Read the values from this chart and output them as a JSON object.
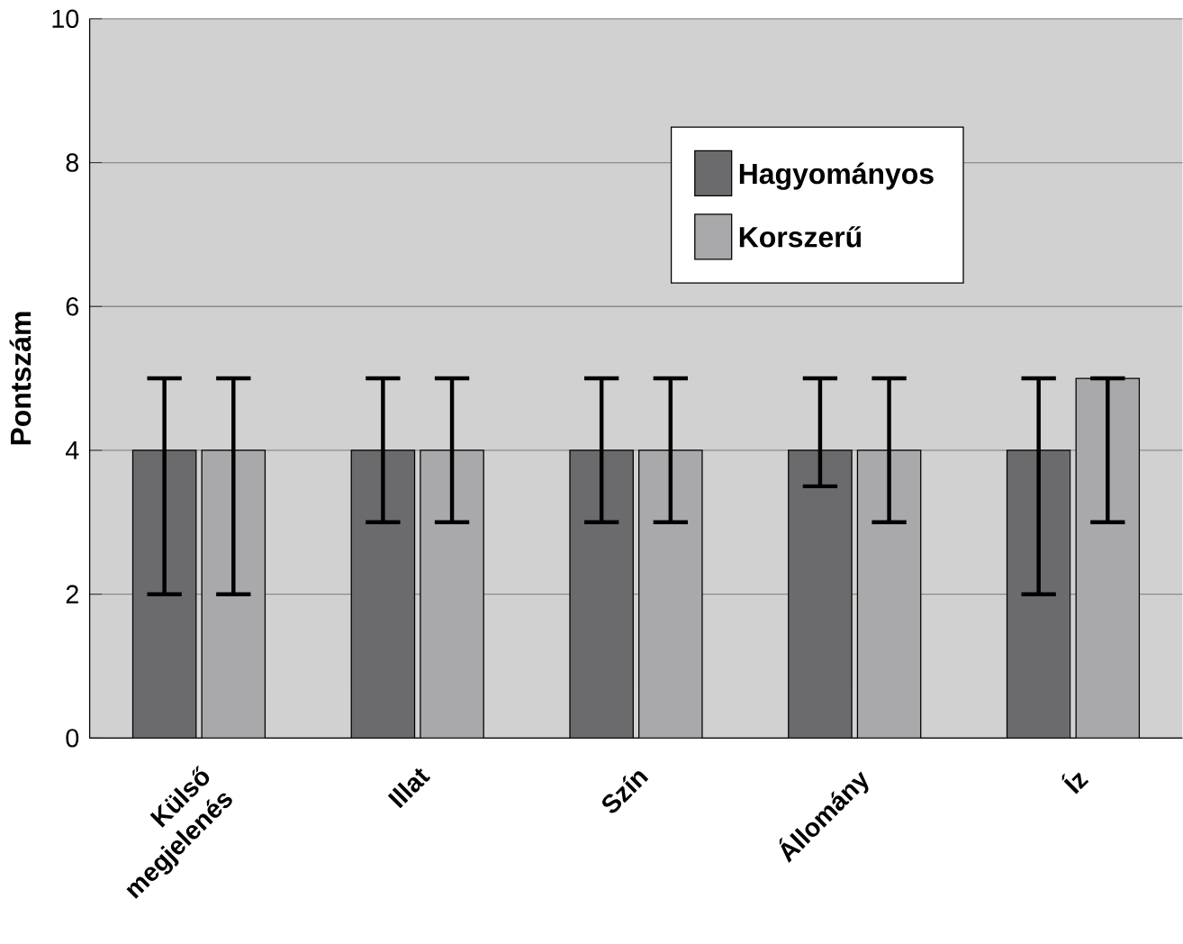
{
  "chart_data": {
    "type": "bar",
    "ylabel": "Pontszám",
    "categories": [
      "Külső megjelenés",
      "Illat",
      "Szín",
      "Állomány",
      "Íz"
    ],
    "series": [
      {
        "name": "Hagyományos",
        "color": "#6b6b6d",
        "values": [
          4,
          4,
          4,
          4,
          4
        ],
        "errors": [
          [
            2,
            5
          ],
          [
            3,
            5
          ],
          [
            3,
            5
          ],
          [
            3.5,
            5
          ],
          [
            2,
            5
          ]
        ]
      },
      {
        "name": "Korszerű",
        "color": "#a9a9ab",
        "values": [
          4,
          4,
          4,
          4,
          5
        ],
        "errors": [
          [
            2,
            5
          ],
          [
            3,
            5
          ],
          [
            3,
            5
          ],
          [
            3,
            5
          ],
          [
            3,
            5
          ]
        ]
      }
    ],
    "ylim": [
      0,
      10
    ],
    "yticks": [
      0,
      2,
      4,
      6,
      8,
      10
    ],
    "grid": "y",
    "legend": "top right"
  }
}
